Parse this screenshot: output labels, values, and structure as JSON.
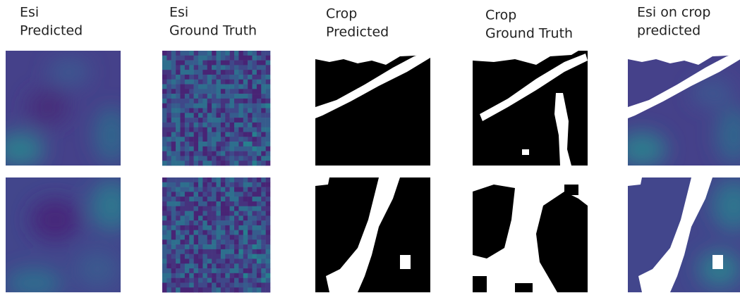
{
  "columns": [
    {
      "lines": [
        "Esi",
        "Predicted"
      ]
    },
    {
      "lines": [
        "Esi",
        "Ground Truth"
      ]
    },
    {
      "lines": [
        "Crop",
        "Predicted"
      ]
    },
    {
      "lines": [
        "Crop",
        "Ground Truth"
      ]
    },
    {
      "lines": [
        "Esi on crop",
        "predicted"
      ]
    }
  ]
}
